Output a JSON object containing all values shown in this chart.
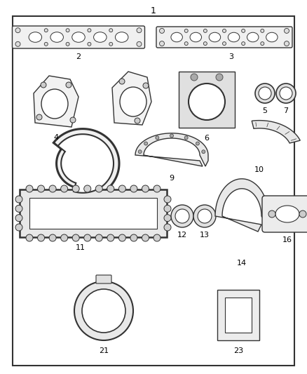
{
  "title": "1",
  "background_color": "#ffffff",
  "border_color": "#333333",
  "text_color": "#000000",
  "figsize": [
    4.38,
    5.33
  ],
  "dpi": 100
}
